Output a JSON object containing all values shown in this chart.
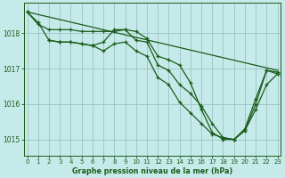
{
  "background_color": "#c6eaea",
  "grid_color": "#a0c8c8",
  "line_color": "#1a5c1a",
  "xlabel": "Graphe pression niveau de la mer (hPa)",
  "xlabel_color": "#1a5c1a",
  "tick_color": "#1a5c1a",
  "ylim": [
    1014.55,
    1018.85
  ],
  "xlim": [
    -0.3,
    23.3
  ],
  "yticks": [
    1015,
    1016,
    1017,
    1018
  ],
  "xticks": [
    0,
    1,
    2,
    3,
    4,
    5,
    6,
    7,
    8,
    9,
    10,
    11,
    12,
    13,
    14,
    15,
    16,
    17,
    18,
    19,
    20,
    21,
    22,
    23
  ],
  "series": [
    {
      "x": [
        0,
        23
      ],
      "y": [
        1018.6,
        1016.95
      ],
      "marker": null,
      "lw": 0.9
    },
    {
      "x": [
        0,
        1,
        2,
        3,
        4,
        5,
        6,
        7,
        8,
        9,
        10,
        11,
        12,
        13,
        14,
        15,
        16,
        17,
        18,
        19,
        20,
        21,
        22,
        23
      ],
      "y": [
        1018.6,
        1018.3,
        1017.8,
        1017.75,
        1017.75,
        1017.7,
        1017.65,
        1017.75,
        1018.1,
        1018.1,
        1017.8,
        1017.75,
        1017.1,
        1016.95,
        1016.55,
        1016.3,
        1015.95,
        1015.45,
        1015.05,
        1015.0,
        1015.3,
        1016.15,
        1016.95,
        1016.9
      ],
      "marker": "+",
      "lw": 0.9
    },
    {
      "x": [
        0,
        1,
        2,
        3,
        4,
        5,
        6,
        7,
        8,
        9,
        10,
        11,
        12,
        13,
        14,
        15,
        16,
        17,
        18,
        19,
        20,
        21,
        22,
        23
      ],
      "y": [
        1018.6,
        1018.25,
        1018.1,
        1018.1,
        1018.1,
        1018.05,
        1018.05,
        1018.05,
        1018.05,
        1018.1,
        1018.05,
        1017.85,
        1017.35,
        1017.25,
        1017.1,
        1016.6,
        1015.85,
        1015.2,
        1015.0,
        1015.0,
        1015.25,
        1016.0,
        1016.95,
        1016.85
      ],
      "marker": "+",
      "lw": 0.9
    },
    {
      "x": [
        2,
        3,
        4,
        5,
        6,
        7,
        8,
        9,
        10,
        11,
        12,
        13,
        14,
        15,
        16,
        17,
        18,
        19,
        20,
        21,
        22,
        23
      ],
      "y": [
        1017.8,
        1017.75,
        1017.75,
        1017.7,
        1017.65,
        1017.5,
        1017.7,
        1017.75,
        1017.5,
        1017.35,
        1016.75,
        1016.55,
        1016.05,
        1015.75,
        1015.45,
        1015.15,
        1015.05,
        1015.0,
        1015.25,
        1015.85,
        1016.55,
        1016.85
      ],
      "marker": "+",
      "lw": 0.9
    }
  ]
}
